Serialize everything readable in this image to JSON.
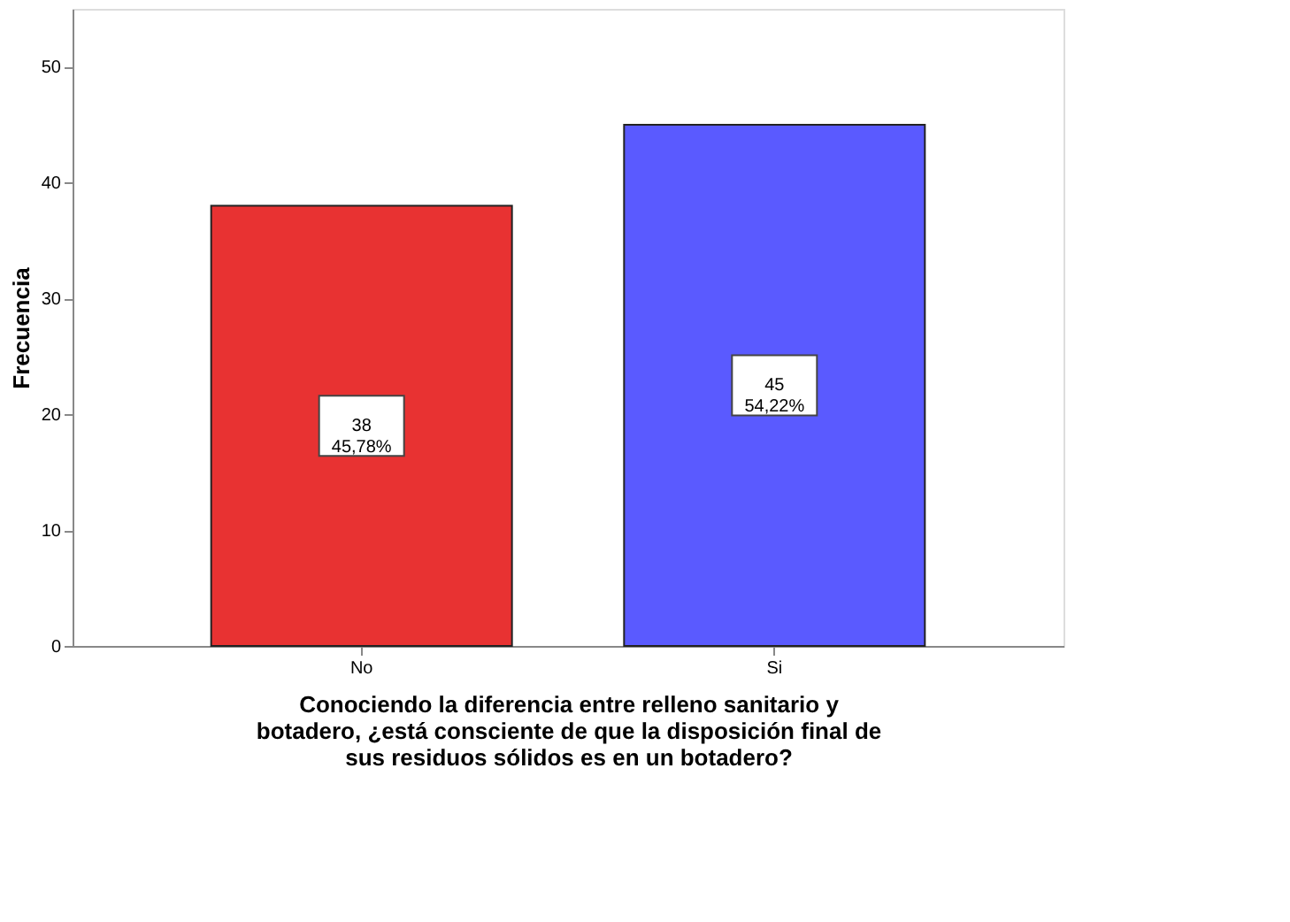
{
  "chart_data": {
    "type": "bar",
    "categories": [
      "No",
      "Si"
    ],
    "values": [
      38,
      45
    ],
    "colors": [
      "#e83232",
      "#5a5aff"
    ],
    "value_labels": [
      "38\n45,78%",
      "45\n54,22%"
    ],
    "ylabel": "Frecuencia",
    "xlabel": "Conociendo la diferencia entre relleno sanitario y\nbotadero, ¿está consciente de que la disposición final de\nsus residuos sólidos es en un botadero?",
    "ylim": [
      0,
      55
    ],
    "yticks": [
      0,
      10,
      20,
      30,
      40,
      50
    ],
    "grid": false
  }
}
